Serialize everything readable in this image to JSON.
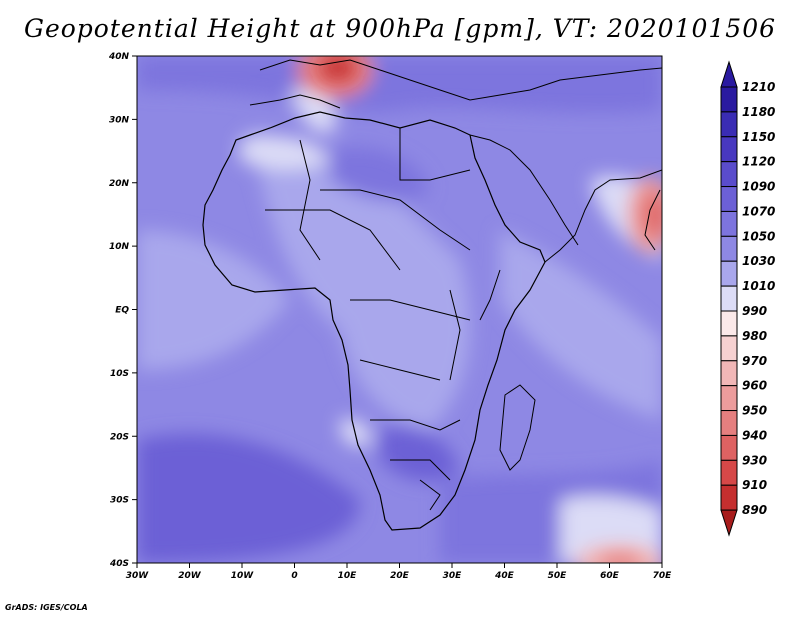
{
  "title": "Geopotential Height at 900hPa [gpm], VT: 2020101506",
  "credit": "GrADS: IGES/COLA",
  "map": {
    "lon_ticks": [
      "30W",
      "20W",
      "10W",
      "0",
      "10E",
      "20E",
      "30E",
      "40E",
      "50E",
      "60E",
      "70E"
    ],
    "lat_ticks": [
      "40N",
      "30N",
      "20N",
      "10N",
      "EQ",
      "10S",
      "20S",
      "30S",
      "40S"
    ]
  },
  "colorbar": {
    "levels": [
      "1210",
      "1180",
      "1150",
      "1120",
      "1090",
      "1070",
      "1050",
      "1030",
      "1010",
      "990",
      "980",
      "970",
      "960",
      "950",
      "940",
      "930",
      "910",
      "890"
    ],
    "colors": [
      "#2a1aa0",
      "#3a2cb4",
      "#4838c0",
      "#5a4ccc",
      "#6c60d6",
      "#7d74de",
      "#8e88e4",
      "#a9a7ec",
      "#dcdcf6",
      "#fbe9e9",
      "#f6d1d1",
      "#f1b7b7",
      "#ec9c9c",
      "#e57f7f",
      "#de6262",
      "#d64848",
      "#c52f2f",
      "#a81c1c"
    ]
  }
}
